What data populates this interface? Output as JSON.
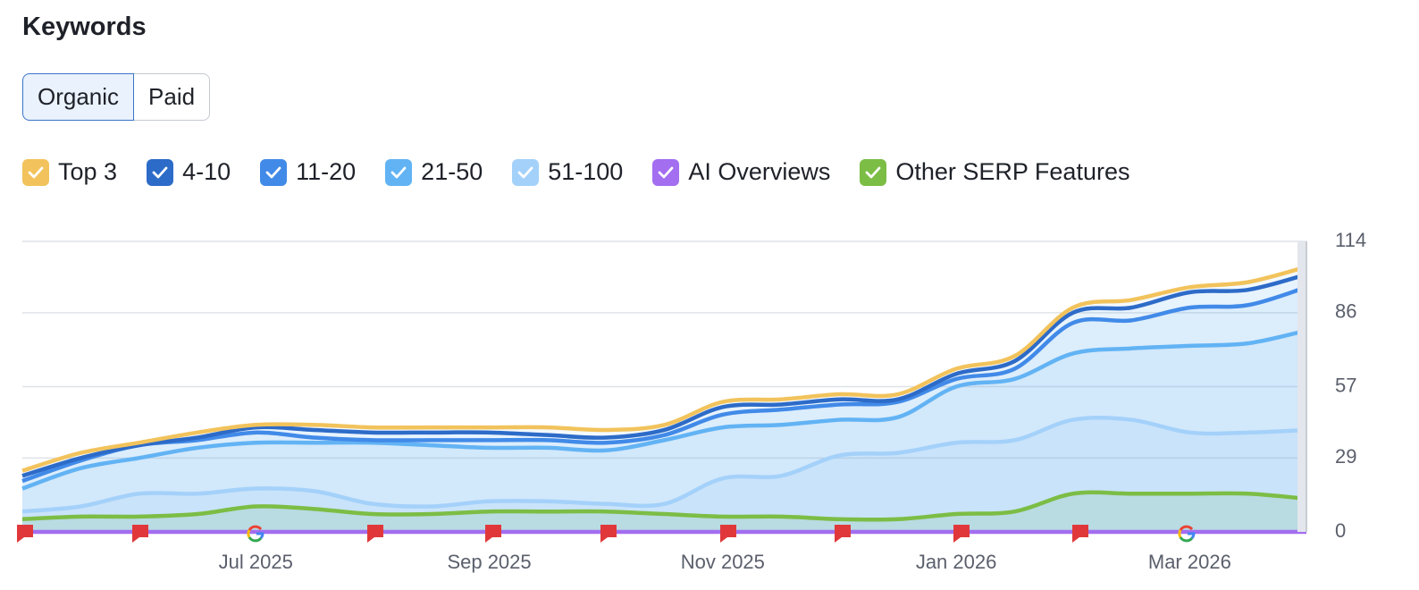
{
  "header": {
    "title": "Keywords",
    "tabs": [
      "Organic",
      "Paid"
    ]
  },
  "chart_data": {
    "type": "stacked-area",
    "categories": [
      null,
      null,
      null,
      null,
      "Jul 2025",
      null,
      null,
      null,
      "Sep 2025",
      null,
      null,
      null,
      "Nov 2025",
      null,
      null,
      null,
      "Jan 2026",
      null,
      null,
      null,
      "Mar 2026",
      null,
      null
    ],
    "ylim": [
      0,
      114
    ],
    "yticks": [
      0,
      29,
      57,
      86,
      114
    ],
    "grid": true,
    "series": [
      {
        "name": "Top 3",
        "color": "#f2c35c",
        "stack": true,
        "values": [
          2,
          2,
          1,
          2,
          1,
          2,
          2,
          2,
          2,
          3,
          3,
          2,
          2,
          2,
          2,
          2,
          2,
          2,
          2,
          3,
          2,
          3,
          3
        ]
      },
      {
        "name": "4-10",
        "color": "#2d6bc8",
        "stack": true,
        "values": [
          2,
          1,
          0,
          1,
          2,
          3,
          3,
          3,
          3,
          2,
          2,
          2,
          3,
          2,
          2,
          1,
          2,
          3,
          4,
          5,
          6,
          6,
          5
        ]
      },
      {
        "name": "11-20",
        "color": "#418ae8",
        "stack": true,
        "values": [
          3,
          3,
          5,
          3,
          4,
          2,
          1,
          2,
          3,
          3,
          3,
          2,
          5,
          6,
          6,
          6,
          3,
          4,
          12,
          11,
          15,
          15,
          17
        ]
      },
      {
        "name": "21-50",
        "color": "#62b3f4",
        "stack": true,
        "values": [
          9,
          15,
          14,
          18,
          18,
          19,
          24,
          24,
          21,
          21,
          21,
          25,
          20,
          20,
          14,
          14,
          22,
          24,
          26,
          28,
          34,
          35,
          39
        ]
      },
      {
        "name": "51-100",
        "color": "#a4d1fa",
        "stack": true,
        "values": [
          8,
          10,
          15,
          15,
          17,
          16,
          11,
          10,
          12,
          12,
          11,
          11,
          21,
          22,
          30,
          31,
          35,
          36,
          44,
          44,
          39,
          39,
          40
        ]
      },
      {
        "name": "AI Overviews",
        "color": "#a36ef0",
        "stack": false,
        "values": [
          0,
          0,
          0,
          0,
          0,
          0,
          0,
          0,
          0,
          0,
          0,
          0,
          0,
          0,
          0,
          0,
          0,
          0,
          0,
          0,
          0,
          0,
          0
        ]
      },
      {
        "name": "Other SERP Features",
        "color": "#7cbd45",
        "stack": false,
        "values": [
          5,
          6,
          6,
          7,
          10,
          9,
          7,
          7,
          8,
          8,
          8,
          7,
          6,
          6,
          5,
          5,
          7,
          8,
          15,
          15,
          15,
          15,
          13
        ]
      }
    ]
  }
}
